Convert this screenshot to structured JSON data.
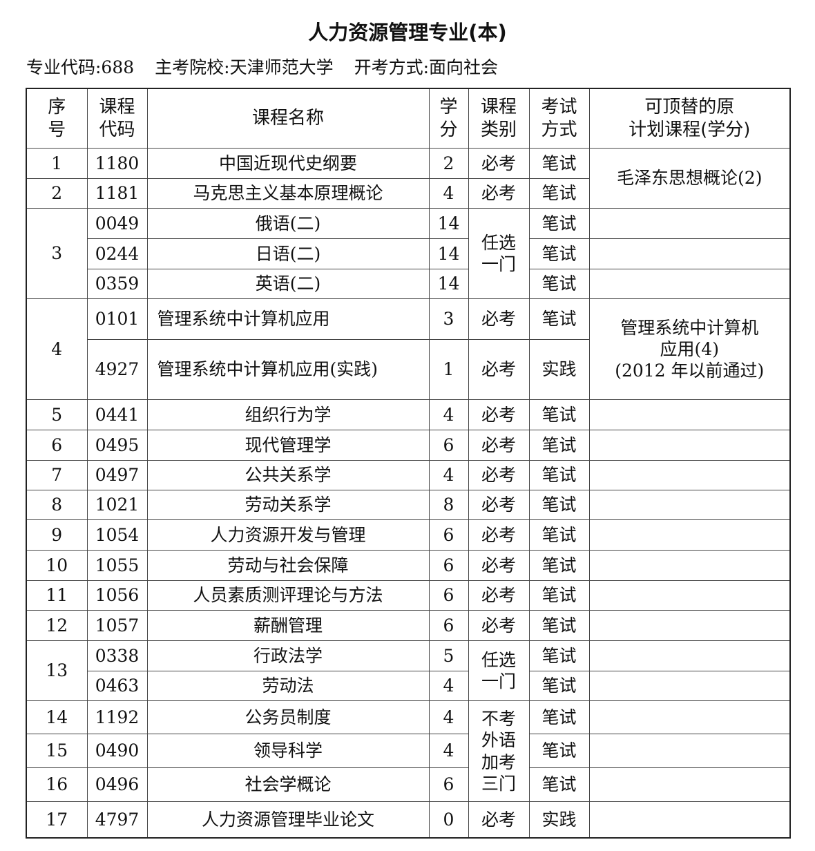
{
  "title": "人力资源管理专业(本)",
  "meta": {
    "major_code": "专业代码:688",
    "school": "主考院校:天津师范大学",
    "mode": "开考方式:面向社会"
  },
  "table": {
    "headers": [
      "序\n号",
      "课程\n代码",
      "课程名称",
      "学\n分",
      "课程\n类别",
      "考试\n方式",
      "可顶替的原\n计划课程(学分)"
    ],
    "rows": [
      {
        "seq": "1",
        "seq_span": 1,
        "code": "1180",
        "name": "中国近现代史纲要",
        "credit": "2",
        "type": "必考",
        "type_span": 1,
        "method": "笔试",
        "replace": "毛泽东思想概论(2)",
        "replace_span": 2
      },
      {
        "seq": "2",
        "seq_span": 1,
        "code": "1181",
        "name": "马克思主义基本原理概论",
        "credit": "4",
        "type": "必考",
        "type_span": 1,
        "method": "笔试"
      },
      {
        "seq": "3",
        "seq_span": 3,
        "code": "0049",
        "name": "俄语(二)",
        "credit": "14",
        "type": "任选\n一门",
        "type_span": 3,
        "method": "笔试",
        "replace": "",
        "replace_span": 1
      },
      {
        "code": "0244",
        "name": "日语(二)",
        "credit": "14",
        "method": "笔试",
        "replace": "",
        "replace_span": 1
      },
      {
        "code": "0359",
        "name": "英语(二)",
        "credit": "14",
        "method": "笔试",
        "replace": "",
        "replace_span": 1
      },
      {
        "seq": "4",
        "seq_span": 2,
        "code": "0101",
        "name": "管理系统中计算机应用",
        "name_align": "left",
        "credit": "3",
        "type": "必考",
        "type_span": 1,
        "method": "笔试",
        "replace": "管理系统中计算机\n应用(4)\n(2012 年以前通过)",
        "replace_span": 2
      },
      {
        "code": "4927",
        "name": "管理系统中计算机应用(实践)",
        "name_align": "left",
        "credit": "1",
        "type": "必考",
        "type_span": 1,
        "method": "实践"
      },
      {
        "seq": "5",
        "seq_span": 1,
        "code": "0441",
        "name": "组织行为学",
        "credit": "4",
        "type": "必考",
        "type_span": 1,
        "method": "笔试",
        "replace": "",
        "replace_span": 1
      },
      {
        "seq": "6",
        "seq_span": 1,
        "code": "0495",
        "name": "现代管理学",
        "credit": "6",
        "type": "必考",
        "type_span": 1,
        "method": "笔试",
        "replace": "",
        "replace_span": 1
      },
      {
        "seq": "7",
        "seq_span": 1,
        "code": "0497",
        "name": "公共关系学",
        "credit": "4",
        "type": "必考",
        "type_span": 1,
        "method": "笔试",
        "replace": "",
        "replace_span": 1
      },
      {
        "seq": "8",
        "seq_span": 1,
        "code": "1021",
        "name": "劳动关系学",
        "credit": "8",
        "type": "必考",
        "type_span": 1,
        "method": "笔试",
        "replace": "",
        "replace_span": 1
      },
      {
        "seq": "9",
        "seq_span": 1,
        "code": "1054",
        "name": "人力资源开发与管理",
        "credit": "6",
        "type": "必考",
        "type_span": 1,
        "method": "笔试",
        "replace": "",
        "replace_span": 1
      },
      {
        "seq": "10",
        "seq_span": 1,
        "code": "1055",
        "name": "劳动与社会保障",
        "credit": "6",
        "type": "必考",
        "type_span": 1,
        "method": "笔试",
        "replace": "",
        "replace_span": 1
      },
      {
        "seq": "11",
        "seq_span": 1,
        "code": "1056",
        "name": "人员素质测评理论与方法",
        "credit": "6",
        "type": "必考",
        "type_span": 1,
        "method": "笔试",
        "replace": "",
        "replace_span": 1
      },
      {
        "seq": "12",
        "seq_span": 1,
        "code": "1057",
        "name": "薪酬管理",
        "credit": "6",
        "type": "必考",
        "type_span": 1,
        "method": "笔试",
        "replace": "",
        "replace_span": 1
      },
      {
        "seq": "13",
        "seq_span": 2,
        "code": "0338",
        "name": "行政法学",
        "credit": "5",
        "type": "任选\n一门",
        "type_span": 2,
        "method": "笔试",
        "replace": "",
        "replace_span": 1
      },
      {
        "code": "0463",
        "name": "劳动法",
        "credit": "4",
        "method": "笔试",
        "replace": "",
        "replace_span": 1
      },
      {
        "seq": "14",
        "seq_span": 1,
        "code": "1192",
        "name": "公务员制度",
        "credit": "4",
        "type": "不考\n外语\n加考\n三门",
        "type_span": 3,
        "method": "笔试",
        "replace": "",
        "replace_span": 1
      },
      {
        "seq": "15",
        "seq_span": 1,
        "code": "0490",
        "name": "领导科学",
        "credit": "4",
        "method": "笔试",
        "replace": "",
        "replace_span": 1
      },
      {
        "seq": "16",
        "seq_span": 1,
        "code": "0496",
        "name": "社会学概论",
        "credit": "6",
        "method": "笔试",
        "replace": "",
        "replace_span": 1
      },
      {
        "seq": "17",
        "seq_span": 1,
        "code": "4797",
        "name": "人力资源管理毕业论文",
        "credit": "0",
        "type": "必考",
        "type_span": 1,
        "method": "实践",
        "replace": "",
        "replace_span": 1
      }
    ]
  }
}
